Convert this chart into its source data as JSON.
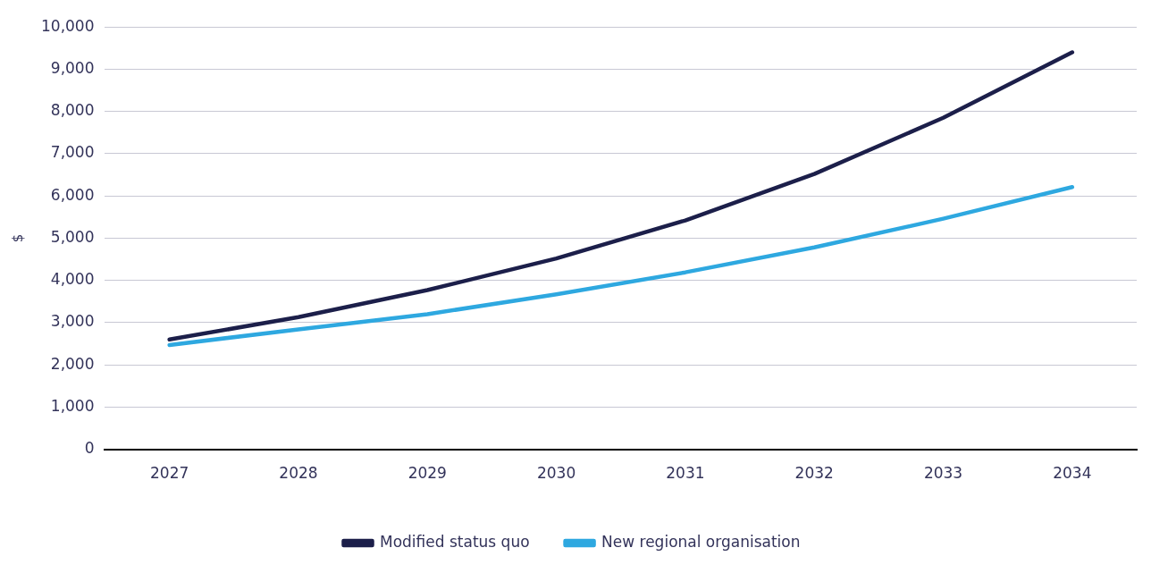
{
  "chart_data": {
    "type": "line",
    "ylabel": "$",
    "categories": [
      "2027",
      "2028",
      "2029",
      "2030",
      "2031",
      "2032",
      "2033",
      "2034"
    ],
    "series": [
      {
        "name": "Modified status quo",
        "color": "#1c1f4a",
        "values": [
          2600,
          3130,
          3770,
          4520,
          5420,
          6520,
          7850,
          9400
        ]
      },
      {
        "name": "New regional organisation",
        "color": "#2ea8e0",
        "values": [
          2470,
          2840,
          3200,
          3670,
          4190,
          4780,
          5460,
          6210
        ]
      }
    ],
    "ylim": [
      0,
      10000
    ],
    "yticks": [
      0,
      {
        "value": 1000,
        "label": "1,000"
      },
      {
        "value": 2000,
        "label": "2,000"
      },
      {
        "value": 3000,
        "label": "3,000"
      },
      {
        "value": 4000,
        "label": "4,000"
      },
      {
        "value": 5000,
        "label": "5,000"
      },
      {
        "value": 6000,
        "label": "6,000"
      },
      {
        "value": 7000,
        "label": "7,000"
      },
      {
        "value": 8000,
        "label": "8,000"
      },
      {
        "value": 9000,
        "label": "9,000"
      },
      {
        "value": 10000,
        "label": "10,000"
      }
    ],
    "grid": "y",
    "legend": "bottom",
    "marker": "none",
    "line_style": "solid"
  }
}
